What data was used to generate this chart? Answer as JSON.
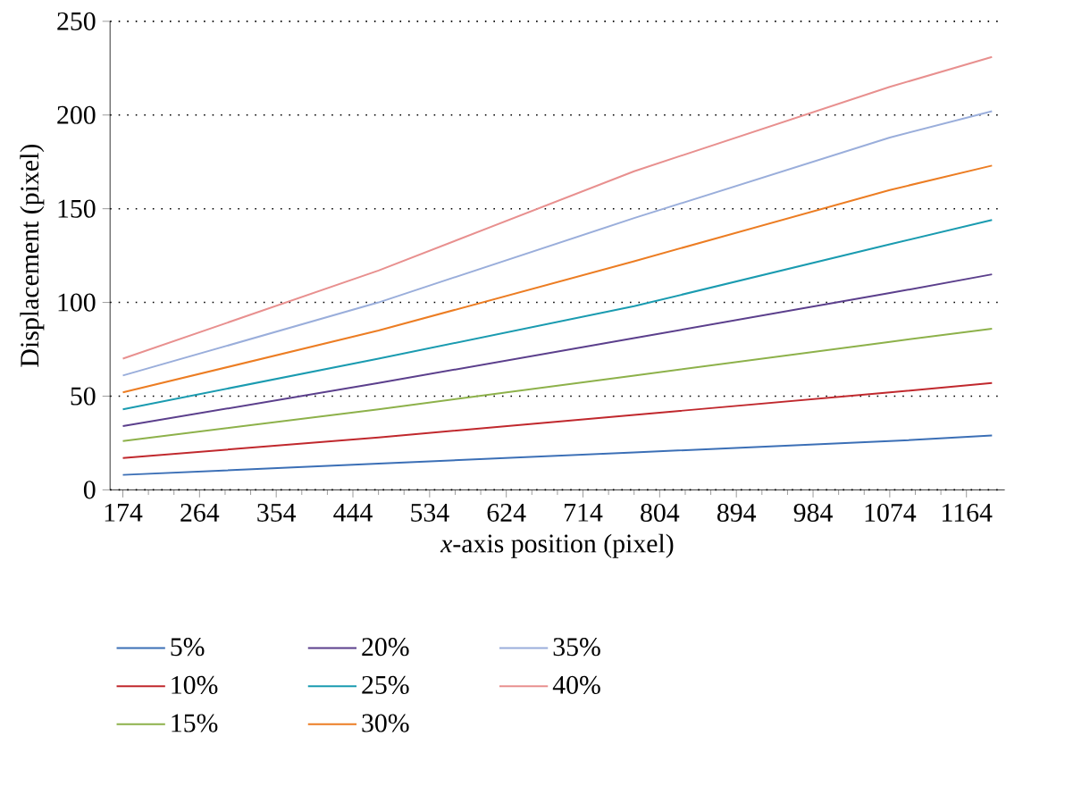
{
  "chart_data": {
    "type": "line",
    "xlabel": "*x*-axis position (pixel)",
    "ylabel": "Displacement (pixel)",
    "x": [
      174,
      474,
      774,
      1074,
      1194
    ],
    "series": [
      {
        "name": "5%",
        "color": "#3b6fb6",
        "values": [
          8,
          14,
          20,
          26,
          29
        ]
      },
      {
        "name": "10%",
        "color": "#c0282d",
        "values": [
          17,
          28,
          40,
          52,
          57
        ]
      },
      {
        "name": "15%",
        "color": "#8db14a",
        "values": [
          26,
          43,
          61,
          79,
          86
        ]
      },
      {
        "name": "20%",
        "color": "#5b3f8c",
        "values": [
          34,
          57,
          81,
          105,
          115
        ]
      },
      {
        "name": "25%",
        "color": "#1a9bb0",
        "values": [
          43,
          70,
          98,
          131,
          144
        ]
      },
      {
        "name": "30%",
        "color": "#ec7d23",
        "values": [
          52,
          85,
          122,
          160,
          173
        ]
      },
      {
        "name": "35%",
        "color": "#9aaedb",
        "values": [
          61,
          100,
          145,
          188,
          202
        ]
      },
      {
        "name": "40%",
        "color": "#e8908f",
        "values": [
          70,
          117,
          170,
          215,
          231
        ]
      }
    ],
    "xlim": [
      159,
      1209
    ],
    "xticks": [
      174,
      264,
      354,
      444,
      534,
      624,
      714,
      804,
      894,
      984,
      1074,
      1164
    ],
    "ylim": [
      0,
      250
    ],
    "yticks": [
      0,
      50,
      100,
      150,
      200,
      250
    ],
    "grid": "y",
    "legend": "bottom",
    "line_style": "solid",
    "marker": "none"
  }
}
